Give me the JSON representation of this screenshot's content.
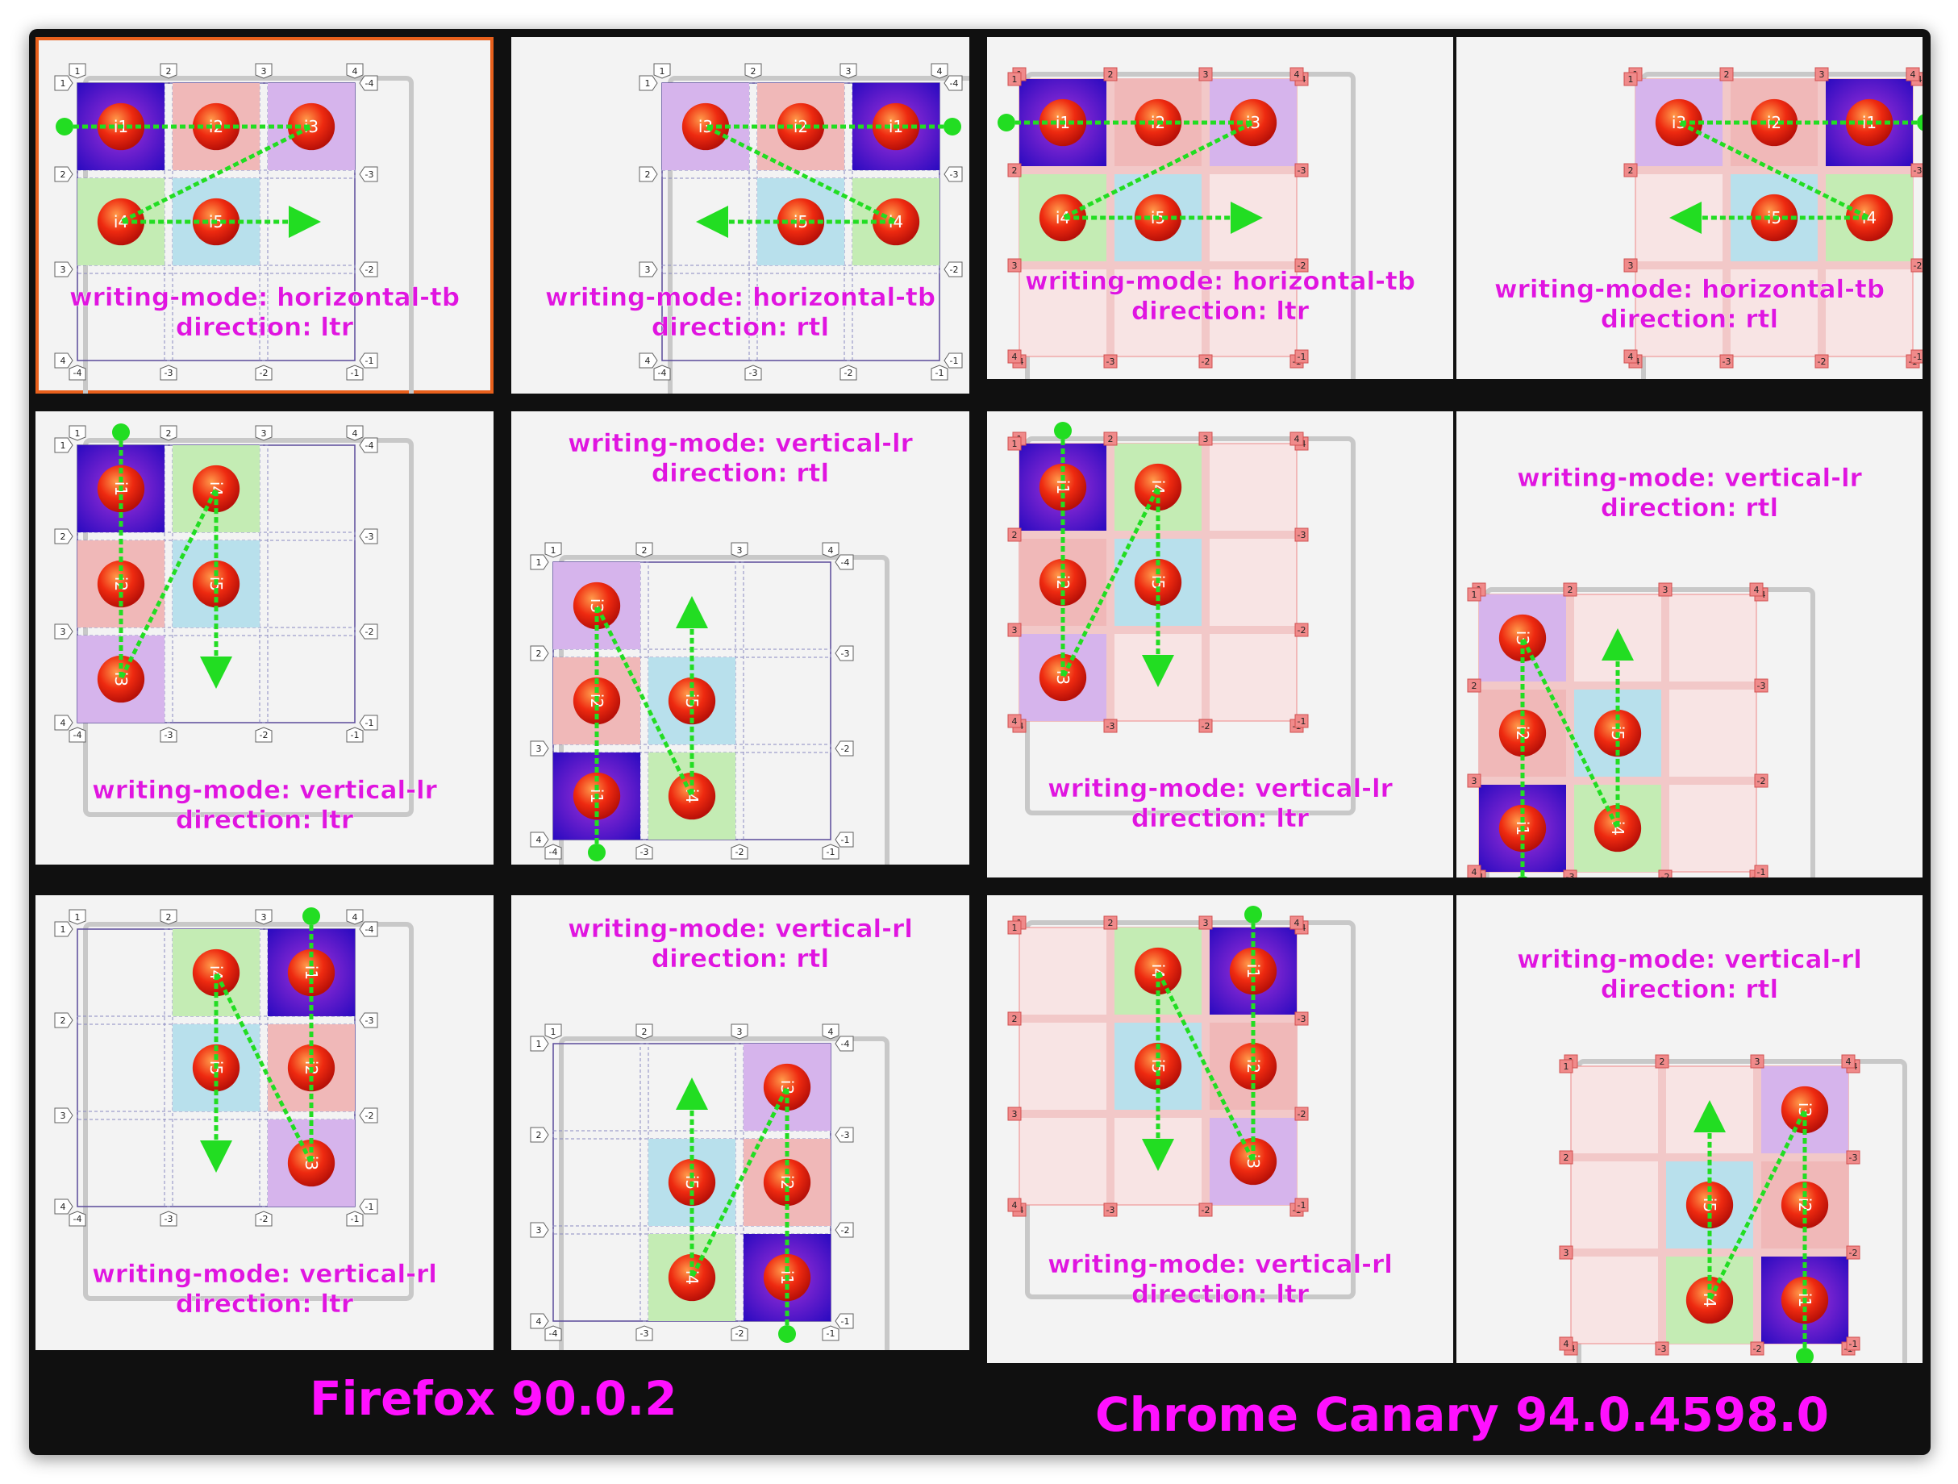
{
  "browsers": {
    "firefox": "Firefox 90.0.2",
    "chrome": "Chrome Canary  94.0.4598.0"
  },
  "colors": {
    "background": "#101010",
    "panel": "#f3f3f3",
    "caption": "#e014e0",
    "arrow": "#22dd22",
    "item_i1": "#3a10c8",
    "item_i2": "#f0b8b8",
    "item_i3": "#d6b4ec",
    "item_i4": "#c4ecb4",
    "item_i5": "#b8e0ec",
    "selected_outline": "#e8601c"
  },
  "panels": [
    {
      "id": "ff-htb-ltr",
      "browser": "firefox",
      "mode": "htb",
      "dir": "ltr",
      "selected": true,
      "caption": [
        "writing-mode: horizontal-tb",
        "direction: ltr"
      ]
    },
    {
      "id": "ff-htb-rtl",
      "browser": "firefox",
      "mode": "htb",
      "dir": "rtl",
      "caption": [
        "writing-mode: horizontal-tb",
        "direction: rtl"
      ]
    },
    {
      "id": "cr-htb-ltr",
      "browser": "chrome",
      "mode": "htb",
      "dir": "ltr",
      "caption": [
        "writing-mode: horizontal-tb",
        "direction: ltr"
      ]
    },
    {
      "id": "cr-htb-rtl",
      "browser": "chrome",
      "mode": "htb",
      "dir": "rtl",
      "caption": [
        "writing-mode: horizontal-tb",
        "direction: rtl"
      ]
    },
    {
      "id": "ff-vlr-ltr",
      "browser": "firefox",
      "mode": "vlr",
      "dir": "ltr",
      "caption": [
        "writing-mode: vertical-lr",
        "direction: ltr"
      ]
    },
    {
      "id": "ff-vlr-rtl",
      "browser": "firefox",
      "mode": "vlr",
      "dir": "rtl",
      "caption": [
        "writing-mode: vertical-lr",
        "direction: rtl"
      ]
    },
    {
      "id": "cr-vlr-ltr",
      "browser": "chrome",
      "mode": "vlr",
      "dir": "ltr",
      "caption": [
        "writing-mode: vertical-lr",
        "direction: ltr"
      ]
    },
    {
      "id": "cr-vlr-rtl",
      "browser": "chrome",
      "mode": "vlr",
      "dir": "rtl",
      "caption": [
        "writing-mode: vertical-lr",
        "direction: rtl"
      ]
    },
    {
      "id": "ff-vrl-ltr",
      "browser": "firefox",
      "mode": "vrl",
      "dir": "ltr",
      "caption": [
        "writing-mode: vertical-rl",
        "direction: ltr"
      ]
    },
    {
      "id": "ff-vrl-rtl",
      "browser": "firefox",
      "mode": "vrl",
      "dir": "rtl",
      "caption": [
        "writing-mode: vertical-rl",
        "direction: rtl"
      ]
    },
    {
      "id": "cr-vrl-ltr",
      "browser": "chrome",
      "mode": "vrl",
      "dir": "ltr",
      "caption": [
        "writing-mode: vertical-rl",
        "direction: ltr"
      ]
    },
    {
      "id": "cr-vrl-rtl",
      "browser": "chrome",
      "mode": "vrl",
      "dir": "rtl",
      "caption": [
        "writing-mode: vertical-rl",
        "direction: rtl"
      ]
    }
  ],
  "items": [
    "i1",
    "i2",
    "i3",
    "i4",
    "i5"
  ],
  "line_numbers": {
    "positive": [
      "1",
      "2",
      "3",
      "4"
    ],
    "negative": [
      "-1",
      "-2",
      "-3",
      "-4"
    ]
  }
}
